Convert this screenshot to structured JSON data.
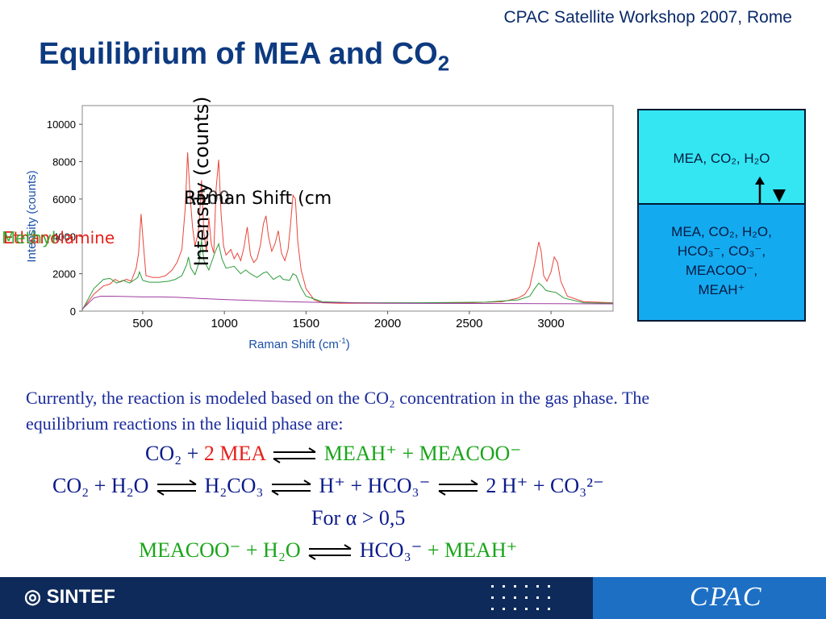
{
  "header": {
    "conference": "CPAC Satellite Workshop 2007, Rome",
    "title_main": "Equilibrium of MEA and CO",
    "title_sub": "2"
  },
  "chart_data": {
    "type": "line",
    "xlabel": "Raman Shift (cm",
    "xlabel_sup": "-1",
    "xlabel_close": ")",
    "ylabel": "Intensity (counts)",
    "x_ticks": [
      500,
      1000,
      1500,
      2000,
      2500,
      3000
    ],
    "y_ticks": [
      0,
      2000,
      4000,
      6000,
      8000,
      10000
    ],
    "xlim": [
      130,
      3380
    ],
    "ylim": [
      0,
      11000
    ],
    "overlay_labels": {
      "raman_shift_partial": "Raman Shift (cm",
      "shift_value": "3500",
      "intensity_vertical": "Intensity (counts)",
      "ethanolamine": "Ethanolamine",
      "methyl": "Methyl"
    },
    "series": [
      {
        "color": "#e8453a",
        "points": [
          [
            130,
            80
          ],
          [
            200,
            900
          ],
          [
            260,
            1350
          ],
          [
            300,
            1450
          ],
          [
            330,
            1700
          ],
          [
            360,
            1550
          ],
          [
            400,
            1700
          ],
          [
            430,
            1600
          ],
          [
            460,
            2300
          ],
          [
            475,
            3100
          ],
          [
            490,
            5200
          ],
          [
            505,
            3500
          ],
          [
            520,
            1900
          ],
          [
            560,
            1800
          ],
          [
            600,
            1800
          ],
          [
            640,
            1900
          ],
          [
            680,
            2200
          ],
          [
            710,
            2600
          ],
          [
            740,
            3300
          ],
          [
            760,
            5500
          ],
          [
            775,
            8500
          ],
          [
            790,
            6200
          ],
          [
            805,
            4500
          ],
          [
            820,
            3500
          ],
          [
            835,
            4000
          ],
          [
            845,
            4600
          ],
          [
            860,
            7000
          ],
          [
            875,
            4200
          ],
          [
            890,
            3200
          ],
          [
            905,
            5000
          ],
          [
            920,
            3600
          ],
          [
            935,
            3100
          ],
          [
            950,
            6600
          ],
          [
            965,
            8100
          ],
          [
            980,
            5200
          ],
          [
            995,
            3500
          ],
          [
            1010,
            3000
          ],
          [
            1040,
            3300
          ],
          [
            1060,
            2800
          ],
          [
            1080,
            3100
          ],
          [
            1100,
            2700
          ],
          [
            1120,
            3400
          ],
          [
            1140,
            4500
          ],
          [
            1160,
            3000
          ],
          [
            1180,
            2600
          ],
          [
            1200,
            2800
          ],
          [
            1220,
            3500
          ],
          [
            1240,
            4700
          ],
          [
            1255,
            5100
          ],
          [
            1270,
            4000
          ],
          [
            1290,
            3200
          ],
          [
            1310,
            3600
          ],
          [
            1330,
            4300
          ],
          [
            1350,
            3100
          ],
          [
            1370,
            2700
          ],
          [
            1390,
            3300
          ],
          [
            1405,
            4600
          ],
          [
            1420,
            6200
          ],
          [
            1435,
            6000
          ],
          [
            1450,
            3700
          ],
          [
            1470,
            2200
          ],
          [
            1500,
            1200
          ],
          [
            1550,
            600
          ],
          [
            1600,
            450
          ],
          [
            1700,
            420
          ],
          [
            1900,
            420
          ],
          [
            2200,
            430
          ],
          [
            2500,
            450
          ],
          [
            2700,
            500
          ],
          [
            2800,
            700
          ],
          [
            2840,
            900
          ],
          [
            2870,
            1300
          ],
          [
            2900,
            2500
          ],
          [
            2925,
            3700
          ],
          [
            2940,
            3200
          ],
          [
            2955,
            1900
          ],
          [
            2975,
            1600
          ],
          [
            3000,
            2100
          ],
          [
            3020,
            2900
          ],
          [
            3040,
            2600
          ],
          [
            3060,
            1600
          ],
          [
            3100,
            800
          ],
          [
            3200,
            500
          ],
          [
            3380,
            450
          ]
        ]
      },
      {
        "color": "#2e9c3c",
        "points": [
          [
            130,
            60
          ],
          [
            200,
            1200
          ],
          [
            260,
            1700
          ],
          [
            300,
            1750
          ],
          [
            340,
            1500
          ],
          [
            380,
            1650
          ],
          [
            420,
            1500
          ],
          [
            470,
            1800
          ],
          [
            480,
            2100
          ],
          [
            500,
            1650
          ],
          [
            540,
            1550
          ],
          [
            600,
            1550
          ],
          [
            660,
            1600
          ],
          [
            700,
            1700
          ],
          [
            740,
            1900
          ],
          [
            770,
            2500
          ],
          [
            780,
            2900
          ],
          [
            795,
            2300
          ],
          [
            820,
            1950
          ],
          [
            845,
            2600
          ],
          [
            860,
            3800
          ],
          [
            875,
            2700
          ],
          [
            905,
            2200
          ],
          [
            945,
            3200
          ],
          [
            965,
            3600
          ],
          [
            985,
            2800
          ],
          [
            1010,
            2300
          ],
          [
            1060,
            2400
          ],
          [
            1100,
            2000
          ],
          [
            1130,
            2200
          ],
          [
            1160,
            2000
          ],
          [
            1200,
            1800
          ],
          [
            1240,
            2050
          ],
          [
            1260,
            2100
          ],
          [
            1300,
            1700
          ],
          [
            1340,
            1900
          ],
          [
            1360,
            1700
          ],
          [
            1400,
            1650
          ],
          [
            1420,
            2000
          ],
          [
            1440,
            1900
          ],
          [
            1470,
            1250
          ],
          [
            1500,
            800
          ],
          [
            1600,
            500
          ],
          [
            1800,
            450
          ],
          [
            2200,
            450
          ],
          [
            2600,
            480
          ],
          [
            2800,
            600
          ],
          [
            2870,
            800
          ],
          [
            2900,
            1200
          ],
          [
            2925,
            1500
          ],
          [
            2945,
            1350
          ],
          [
            2970,
            1100
          ],
          [
            3000,
            1050
          ],
          [
            3030,
            1000
          ],
          [
            3080,
            700
          ],
          [
            3200,
            450
          ],
          [
            3380,
            420
          ]
        ]
      },
      {
        "color": "#a03ca0",
        "points": [
          [
            130,
            100
          ],
          [
            200,
            700
          ],
          [
            240,
            800
          ],
          [
            300,
            800
          ],
          [
            400,
            780
          ],
          [
            500,
            760
          ],
          [
            600,
            760
          ],
          [
            700,
            740
          ],
          [
            800,
            700
          ],
          [
            900,
            660
          ],
          [
            1000,
            620
          ],
          [
            1200,
            560
          ],
          [
            1400,
            500
          ],
          [
            1600,
            460
          ],
          [
            1800,
            440
          ],
          [
            2000,
            420
          ],
          [
            2500,
            410
          ],
          [
            3000,
            400
          ],
          [
            3380,
            390
          ]
        ]
      }
    ]
  },
  "phase_box": {
    "top_line": "MEA, CO₂, H₂O",
    "bottom_lines": [
      "MEA, CO₂, H₂O,",
      "HCO₃⁻, CO₃⁻,",
      "MEACOO⁻,",
      "MEAH⁺"
    ]
  },
  "body": {
    "paragraph": "Currently, the reaction is modeled based on the CO₂ concentration in the gas phase. The equilibrium reactions in the liquid phase are:",
    "eq1_left": "CO₂ + ",
    "eq1_mea": "2 MEA",
    "eq1_right": "MEAH⁺ + MEACOO⁻",
    "eq2_a": "CO₂ + H₂O",
    "eq2_b": "H₂CO₃",
    "eq2_c": "H⁺ + HCO₃⁻",
    "eq2_d": "2 H⁺ + CO₃²⁻",
    "condition": "For α > 0,5",
    "eq3_left": "MEACOO⁻ + H₂O",
    "eq3_mid": "HCO₃⁻",
    "eq3_right": "+ MEAH⁺"
  },
  "footer": {
    "sintef": "SINTEF",
    "cpac": "CPAC"
  }
}
